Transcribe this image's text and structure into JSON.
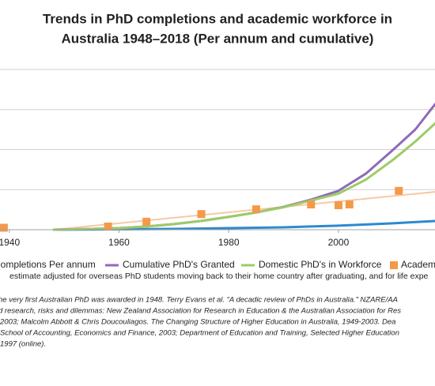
{
  "chart_data": {
    "type": "line",
    "title": [
      "Trends in PhD completions and academic workforce in",
      "Australia 1948–2018 (Per annum and cumulative)"
    ],
    "xlim": [
      1938.3,
      2017.6
    ],
    "xticks": [
      1940,
      1960,
      1980,
      2000
    ],
    "ylim": [
      0,
      4
    ],
    "yticks": [
      0,
      1,
      2,
      3,
      4
    ],
    "grid": true,
    "series": [
      {
        "name": "Completions Per annum",
        "type": "line",
        "color": "#2b8ad0",
        "x": [
          1948,
          1960,
          1970,
          1980,
          1990,
          2000,
          2010,
          2018
        ],
        "values": [
          0,
          0.01,
          0.02,
          0.04,
          0.06,
          0.1,
          0.16,
          0.22
        ]
      },
      {
        "name": "Cumulative PhD's Granted",
        "type": "line",
        "color": "#8e6bb8",
        "x": [
          1948,
          1955,
          1960,
          1965,
          1970,
          1975,
          1980,
          1985,
          1990,
          1995,
          2000,
          2005,
          2010,
          2014,
          2018
        ],
        "values": [
          0,
          0.02,
          0.04,
          0.08,
          0.14,
          0.22,
          0.32,
          0.43,
          0.57,
          0.75,
          0.97,
          1.4,
          2.0,
          2.5,
          3.2
        ]
      },
      {
        "name": "Domestic PhD's in Workforce",
        "type": "line",
        "color": "#9ccc65",
        "x": [
          1948,
          1955,
          1960,
          1965,
          1970,
          1975,
          1980,
          1985,
          1990,
          1995,
          2000,
          2005,
          2010,
          2014,
          2018
        ],
        "values": [
          0,
          0.02,
          0.04,
          0.08,
          0.14,
          0.22,
          0.32,
          0.43,
          0.56,
          0.73,
          0.9,
          1.25,
          1.75,
          2.2,
          2.7
        ]
      },
      {
        "name": "Academic Workforce",
        "type": "scatter",
        "color": "#f39a4a",
        "x": [
          1939,
          1958,
          1965,
          1975,
          1985,
          1995,
          2000,
          2002,
          2011
        ],
        "values": [
          0.05,
          0.08,
          0.2,
          0.39,
          0.51,
          0.63,
          0.61,
          0.63,
          0.97
        ]
      }
    ],
    "trendline": {
      "color": "#f8c8a4",
      "x": [
        1948,
        2018
      ],
      "values": [
        0,
        0.95
      ]
    },
    "note": "estimate adjusted for overseas PhD students moving back to their home country after graduating, and for life expe",
    "sources": [
      "he very first Australian PhD was awarded in 1948. Terry Evans et al. “A decadic review of PhDs in Australia.” NZARE/AA",
      "d research, risks and dilemmas: New Zealand Association for Research in Education & the Australian Association for Res",
      "2003; Malcolm Abbott & Chris Doucouliagos. The Changing Structure of Higher Education in Australia, 1949-2003. Dea",
      "School of Accounting, Economics and Finance, 2003; Department of Education and Training, Selected Higher Education",
      "1997 (online)."
    ]
  }
}
